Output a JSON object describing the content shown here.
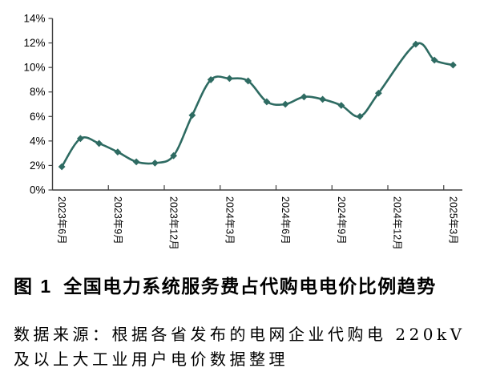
{
  "figure": {
    "caption_label": "图 1",
    "caption_text": "全国电力系统服务费占代购电电价比例趋势",
    "source_line1": "数据来源：根据各省发布的电网企业代购电 220kV",
    "source_line2": "及以上大工业用户电价数据整理"
  },
  "chart_data": {
    "type": "line",
    "title": "",
    "xlabel": "",
    "ylabel": "",
    "ylim": [
      0,
      14
    ],
    "grid": false,
    "legend": "none",
    "smoothed": true,
    "marker": "diamond",
    "series_color": "#2e6b62",
    "axis_color": "#3f3f3f",
    "x_range_note": "monthly categories from 2023年6月 to 2025年3月, 22 categories, tick labels every 3 months",
    "x_tick_labels": [
      "2023年6月",
      "2023年9月",
      "2023年12月",
      "2024年3月",
      "2024年6月",
      "2024年9月",
      "2024年12月",
      "2025年3月"
    ],
    "y_tick_labels": [
      "0%",
      "2%",
      "4%",
      "6%",
      "8%",
      "10%",
      "12%",
      "14%"
    ],
    "values_percent": [
      1.9,
      4.2,
      3.8,
      3.1,
      2.3,
      2.2,
      2.8,
      6.1,
      9.0,
      9.1,
      8.9,
      7.2,
      7.0,
      7.6,
      7.4,
      6.9,
      6.0,
      7.9,
      null,
      11.9,
      10.6,
      10.2
    ],
    "missing_point_note": "no marker rendered for 2024年12月 (index 18); line connects straight through"
  }
}
